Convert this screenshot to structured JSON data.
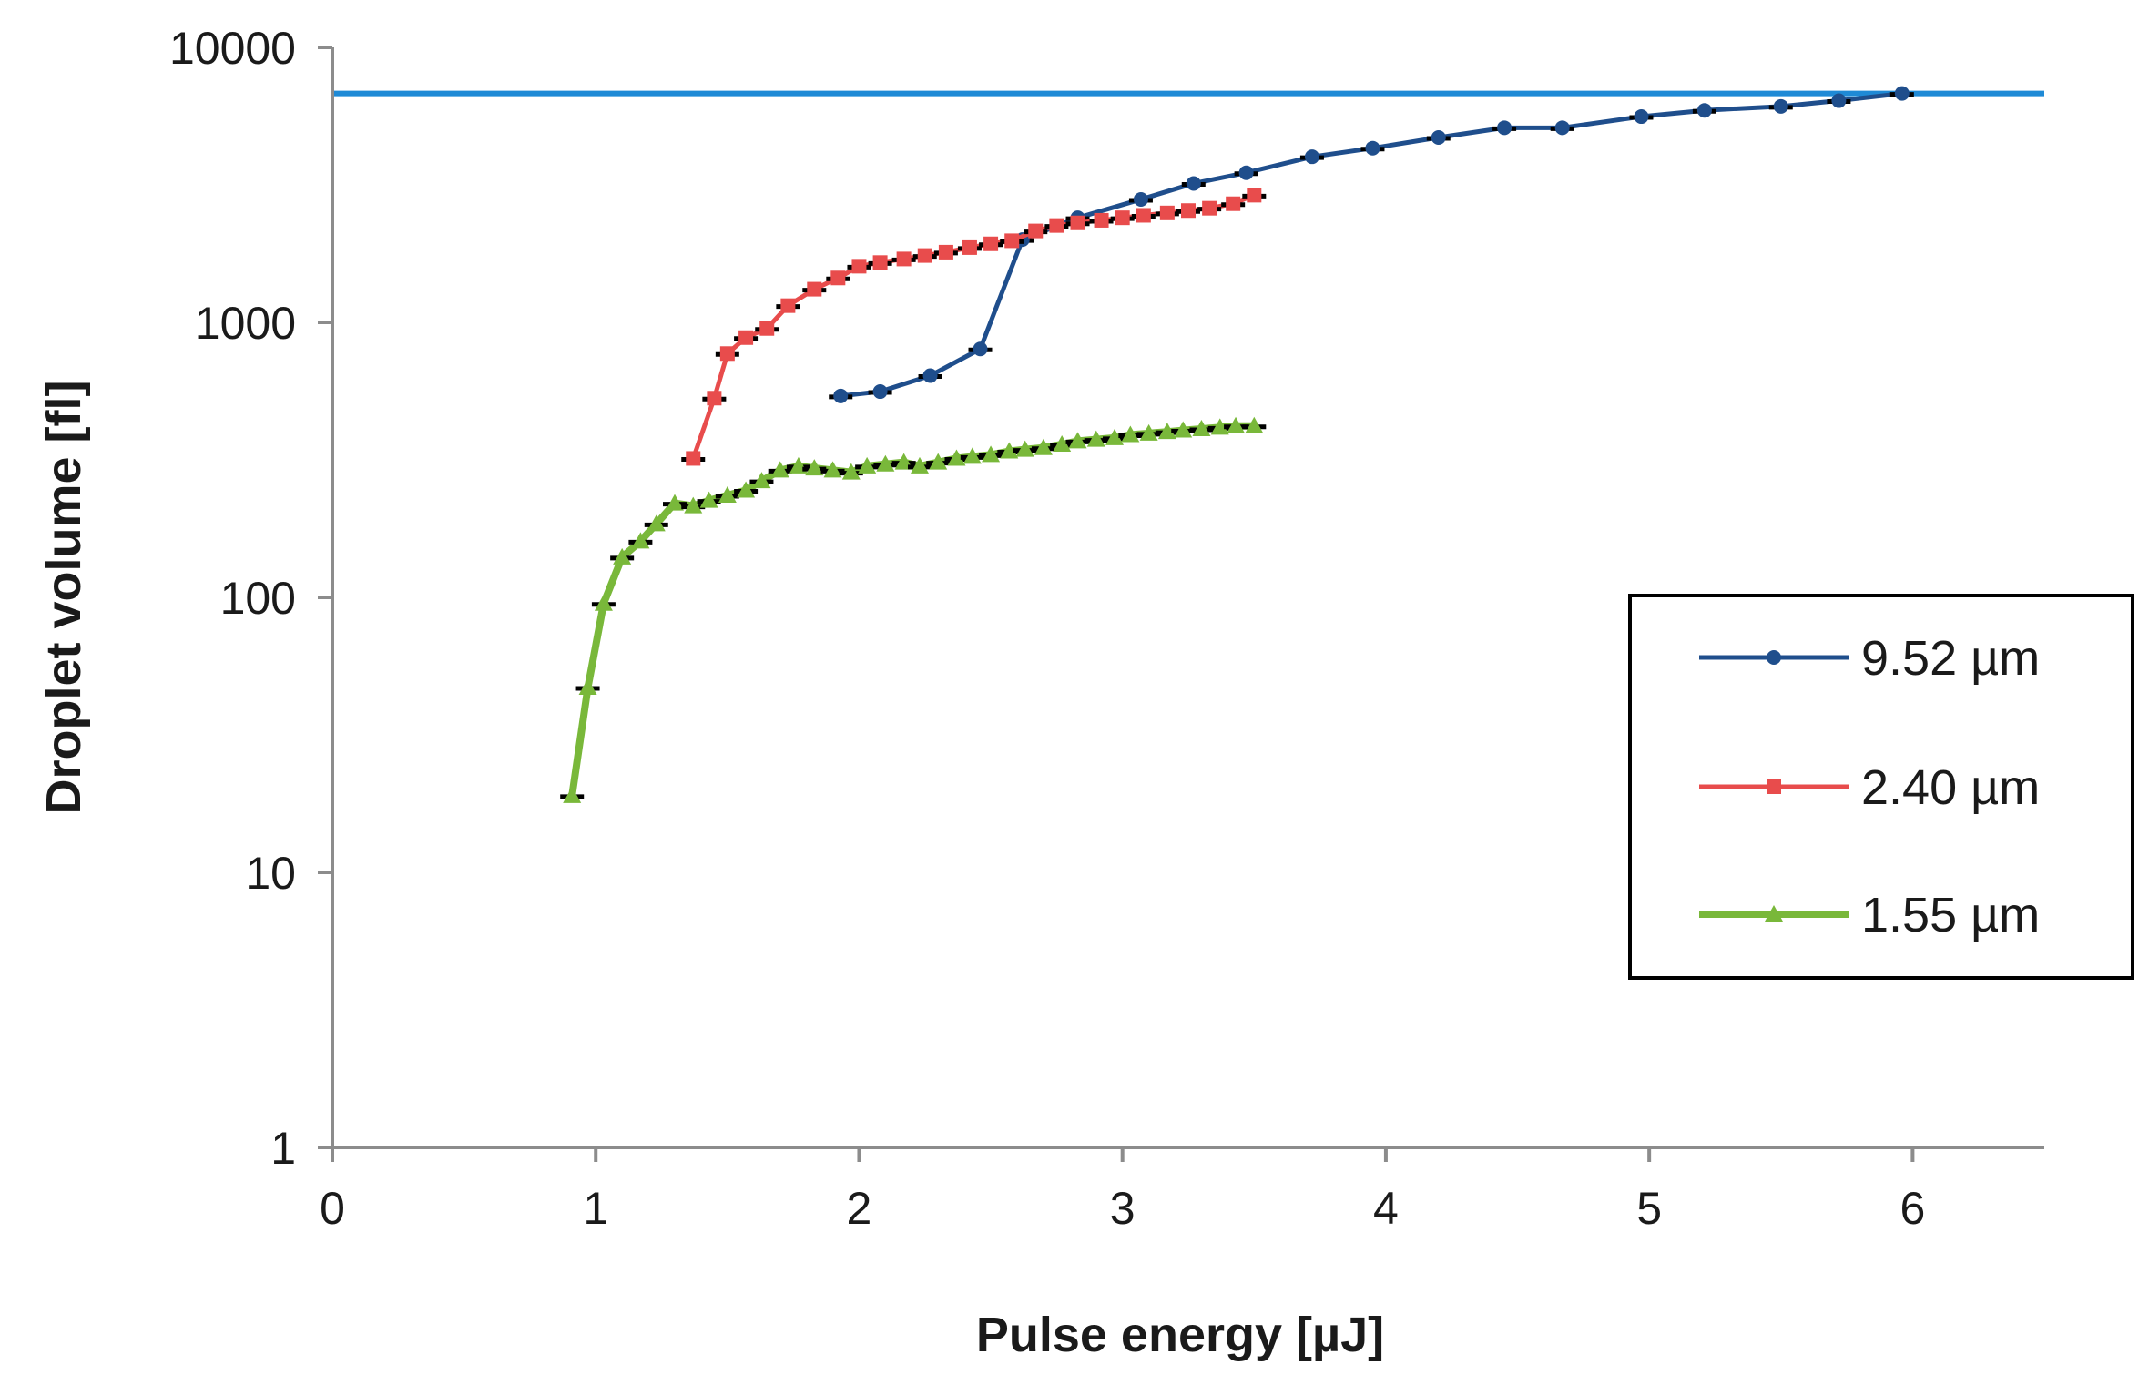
{
  "chart_data": {
    "type": "line",
    "title": "",
    "xlabel": "Pulse energy [µJ]",
    "ylabel": "Droplet volume  [fl]",
    "xlim": [
      0,
      6.5
    ],
    "ylim": [
      1,
      10000
    ],
    "yscale": "log",
    "x_ticks": [
      0,
      1,
      2,
      3,
      4,
      5,
      6
    ],
    "x_tick_labels": [
      "0",
      "1",
      "2",
      "3",
      "4",
      "5",
      "6"
    ],
    "y_ticks": [
      1,
      10,
      100,
      1000,
      10000
    ],
    "y_tick_labels": [
      "1",
      "10",
      "100",
      "1000",
      "10000"
    ],
    "reference_line": {
      "y": 6800,
      "color": "#1f8ad6"
    },
    "legend_position": "right",
    "series": [
      {
        "name": "9.52 µm",
        "color": "#1f4e8c",
        "marker": "circle",
        "x": [
          1.93,
          2.08,
          2.27,
          2.46,
          2.62,
          2.83,
          3.07,
          3.27,
          3.47,
          3.72,
          3.95,
          4.2,
          4.45,
          4.67,
          4.97,
          5.21,
          5.5,
          5.72,
          5.96
        ],
        "y": [
          540,
          560,
          640,
          800,
          2000,
          2400,
          2800,
          3200,
          3500,
          4000,
          4300,
          4700,
          5100,
          5100,
          5600,
          5900,
          6100,
          6400,
          6800
        ]
      },
      {
        "name": "2.40 µm",
        "color": "#e84c4c",
        "marker": "square",
        "x": [
          1.37,
          1.45,
          1.5,
          1.57,
          1.65,
          1.73,
          1.83,
          1.92,
          2.0,
          2.08,
          2.17,
          2.25,
          2.33,
          2.42,
          2.5,
          2.58,
          2.67,
          2.75,
          2.83,
          2.92,
          3.0,
          3.08,
          3.17,
          3.25,
          3.33,
          3.42,
          3.5
        ],
        "y": [
          320,
          530,
          770,
          880,
          950,
          1150,
          1320,
          1450,
          1600,
          1650,
          1700,
          1750,
          1800,
          1870,
          1930,
          1980,
          2150,
          2250,
          2300,
          2350,
          2400,
          2450,
          2500,
          2550,
          2600,
          2700,
          2900
        ]
      },
      {
        "name": "1.55 µm",
        "color": "#79b83a",
        "marker": "triangle",
        "x": [
          0.91,
          0.97,
          1.03,
          1.1,
          1.17,
          1.23,
          1.3,
          1.37,
          1.43,
          1.5,
          1.57,
          1.63,
          1.7,
          1.77,
          1.83,
          1.9,
          1.97,
          2.03,
          2.1,
          2.17,
          2.23,
          2.3,
          2.37,
          2.43,
          2.5,
          2.57,
          2.63,
          2.7,
          2.77,
          2.83,
          2.9,
          2.97,
          3.03,
          3.1,
          3.17,
          3.23,
          3.3,
          3.37,
          3.43,
          3.5
        ],
        "y": [
          19,
          47,
          95,
          140,
          160,
          185,
          220,
          215,
          225,
          235,
          245,
          265,
          290,
          300,
          295,
          290,
          285,
          300,
          305,
          310,
          300,
          310,
          320,
          325,
          330,
          340,
          345,
          350,
          360,
          370,
          375,
          380,
          390,
          395,
          400,
          405,
          410,
          415,
          420,
          420
        ]
      }
    ]
  }
}
